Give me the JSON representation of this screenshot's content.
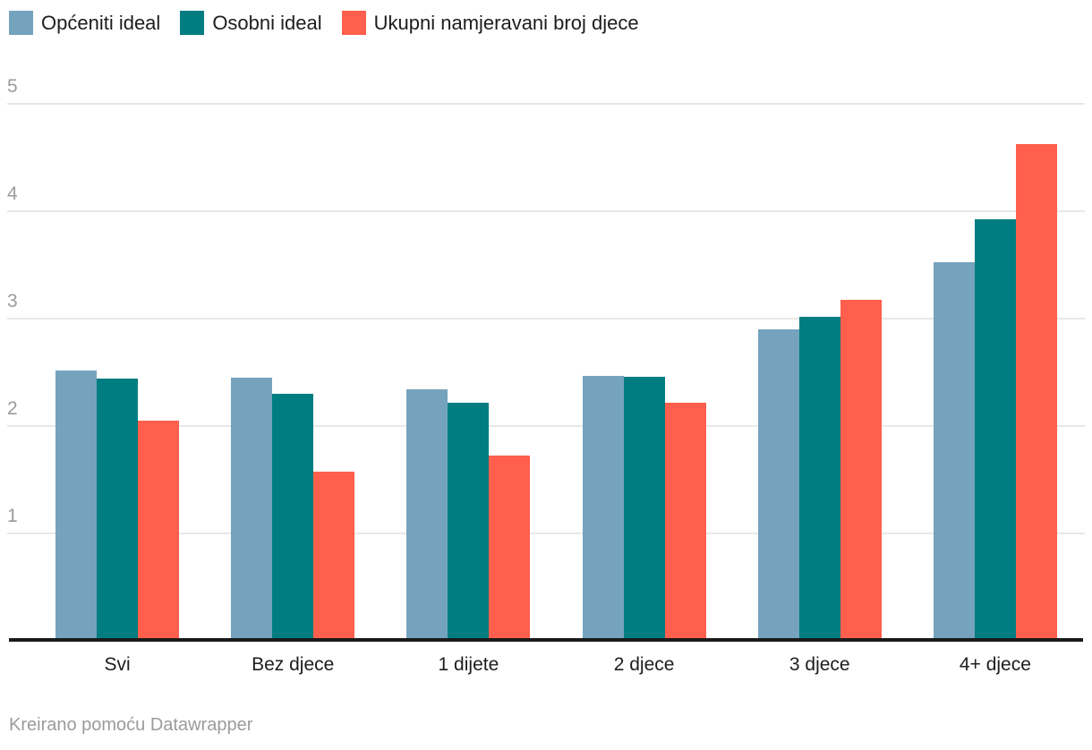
{
  "legend": {
    "items": [
      {
        "label": "Općeniti ideal",
        "color": "#75A3BD"
      },
      {
        "label": "Osobni ideal",
        "color": "#007D80"
      },
      {
        "label": "Ukupni namjeravani broj djece",
        "color": "#FF5F4C"
      }
    ]
  },
  "chart_data": {
    "type": "bar",
    "title": "",
    "categories": [
      "Svi",
      "Bez djece",
      "1 dijete",
      "2 djece",
      "3 djece",
      "4+ djece"
    ],
    "series": [
      {
        "name": "Općeniti ideal",
        "color": "#75A3BD",
        "values": [
          2.51,
          2.44,
          2.33,
          2.46,
          2.89,
          3.52
        ]
      },
      {
        "name": "Osobni ideal",
        "color": "#007D80",
        "values": [
          2.43,
          2.29,
          2.21,
          2.45,
          3.01,
          3.92
        ]
      },
      {
        "name": "Ukupni namjeravani broj djece",
        "color": "#FF5F4C",
        "values": [
          2.04,
          1.57,
          1.72,
          2.21,
          3.17,
          4.62
        ]
      }
    ],
    "xlabel": "",
    "ylabel": "",
    "ylim": [
      0,
      5
    ],
    "yticks": [
      1,
      2,
      3,
      4,
      5
    ],
    "grid": true,
    "legend_position": "top-left"
  },
  "colors": {
    "background": "#FFFFFF",
    "gridline": "#E8E8E8",
    "baseline": "#1A1A1A",
    "y_tick_text": "#9B9B9B",
    "x_tick_text": "#1D1D1D",
    "legend_text": "#1D1D1D",
    "footer_text": "#9B9B9B"
  },
  "footer": {
    "credit": "Kreirano pomoću Datawrapper"
  }
}
